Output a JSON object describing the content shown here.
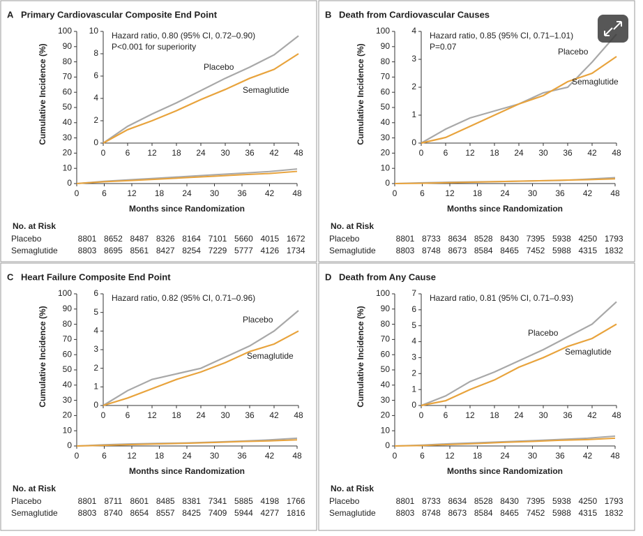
{
  "chart_data": [
    {
      "type": "line",
      "label": "A",
      "title": "Primary Cardiovascular Composite End Point",
      "x_label": "Months since Randomization",
      "y_label": "Cumulative Incidence (%)",
      "x": [
        0,
        6,
        12,
        18,
        24,
        30,
        36,
        42,
        48
      ],
      "xlim": [
        0,
        48
      ],
      "xticks": [
        0,
        6,
        12,
        18,
        24,
        30,
        36,
        42,
        48
      ],
      "ylim": [
        0,
        100
      ],
      "yticks": [
        0,
        10,
        20,
        30,
        40,
        50,
        60,
        70,
        80,
        90,
        100
      ],
      "inset": {
        "ylim": [
          0,
          10
        ],
        "yticks": [
          0,
          2,
          4,
          6,
          8,
          10
        ]
      },
      "series": [
        {
          "name": "Placebo",
          "color": "#a8a8a8",
          "values": [
            0,
            1.5,
            2.6,
            3.6,
            4.7,
            5.8,
            6.8,
            7.9,
            9.6
          ]
        },
        {
          "name": "Semaglutide",
          "color": "#e8a33c",
          "values": [
            0,
            1.2,
            2.0,
            2.9,
            3.9,
            4.8,
            5.8,
            6.6,
            8.0
          ]
        }
      ],
      "annotations": [
        "Hazard ratio, 0.80 (95% CI, 0.72–0.90)",
        "P<0.001 for superiority"
      ],
      "risk_table": {
        "title": "No. at Risk",
        "rows": [
          {
            "name": "Placebo",
            "values": [
              "8801",
              "8652",
              "8487",
              "8326",
              "8164",
              "7101",
              "5660",
              "4015",
              "1672"
            ]
          },
          {
            "name": "Semaglutide",
            "values": [
              "8803",
              "8695",
              "8561",
              "8427",
              "8254",
              "7229",
              "5777",
              "4126",
              "1734"
            ]
          }
        ]
      }
    },
    {
      "type": "line",
      "label": "B",
      "title": "Death from Cardiovascular Causes",
      "x_label": "Months since Randomization",
      "y_label": "Cumulative Incidence (%)",
      "x": [
        0,
        6,
        12,
        18,
        24,
        30,
        36,
        42,
        48
      ],
      "xlim": [
        0,
        48
      ],
      "xticks": [
        0,
        6,
        12,
        18,
        24,
        30,
        36,
        42,
        48
      ],
      "ylim": [
        0,
        100
      ],
      "yticks": [
        0,
        10,
        20,
        30,
        40,
        50,
        60,
        70,
        80,
        90,
        100
      ],
      "inset": {
        "ylim": [
          0,
          4
        ],
        "yticks": [
          0,
          1,
          2,
          3,
          4
        ]
      },
      "series": [
        {
          "name": "Placebo",
          "color": "#a8a8a8",
          "values": [
            0,
            0.5,
            0.9,
            1.15,
            1.4,
            1.8,
            2.0,
            2.9,
            3.9
          ]
        },
        {
          "name": "Semaglutide",
          "color": "#e8a33c",
          "values": [
            0,
            0.2,
            0.6,
            1.0,
            1.4,
            1.7,
            2.2,
            2.5,
            3.1
          ]
        }
      ],
      "annotations": [
        "Hazard ratio, 0.85 (95% CI, 0.71–1.01)",
        "P=0.07"
      ],
      "risk_table": {
        "title": "No. at Risk",
        "rows": [
          {
            "name": "Placebo",
            "values": [
              "8801",
              "8733",
              "8634",
              "8528",
              "8430",
              "7395",
              "5938",
              "4250",
              "1793"
            ]
          },
          {
            "name": "Semaglutide",
            "values": [
              "8803",
              "8748",
              "8673",
              "8584",
              "8465",
              "7452",
              "5988",
              "4315",
              "1832"
            ]
          }
        ]
      }
    },
    {
      "type": "line",
      "label": "C",
      "title": "Heart Failure Composite End Point",
      "x_label": "Months since Randomization",
      "y_label": "Cumulative Incidence (%)",
      "x": [
        0,
        6,
        12,
        18,
        24,
        30,
        36,
        42,
        48
      ],
      "xlim": [
        0,
        48
      ],
      "xticks": [
        0,
        6,
        12,
        18,
        24,
        30,
        36,
        42,
        48
      ],
      "ylim": [
        0,
        100
      ],
      "yticks": [
        0,
        10,
        20,
        30,
        40,
        50,
        60,
        70,
        80,
        90,
        100
      ],
      "inset": {
        "ylim": [
          0,
          6
        ],
        "yticks": [
          0,
          1,
          2,
          3,
          4,
          5,
          6
        ]
      },
      "series": [
        {
          "name": "Placebo",
          "color": "#a8a8a8",
          "values": [
            0,
            0.8,
            1.4,
            1.7,
            2.0,
            2.6,
            3.2,
            4.0,
            5.1
          ]
        },
        {
          "name": "Semaglutide",
          "color": "#e8a33c",
          "values": [
            0,
            0.4,
            0.9,
            1.4,
            1.8,
            2.3,
            2.9,
            3.3,
            4.0
          ]
        }
      ],
      "annotations": [
        "Hazard ratio, 0.82 (95% CI, 0.71–0.96)"
      ],
      "risk_table": {
        "title": "No. at Risk",
        "rows": [
          {
            "name": "Placebo",
            "values": [
              "8801",
              "8711",
              "8601",
              "8485",
              "8381",
              "7341",
              "5885",
              "4198",
              "1766"
            ]
          },
          {
            "name": "Semaglutide",
            "values": [
              "8803",
              "8740",
              "8654",
              "8557",
              "8425",
              "7409",
              "5944",
              "4277",
              "1816"
            ]
          }
        ]
      }
    },
    {
      "type": "line",
      "label": "D",
      "title": "Death from Any Cause",
      "x_label": "Months since Randomization",
      "y_label": "Cumulative Incidence (%)",
      "x": [
        0,
        6,
        12,
        18,
        24,
        30,
        36,
        42,
        48
      ],
      "xlim": [
        0,
        48
      ],
      "xticks": [
        0,
        6,
        12,
        18,
        24,
        30,
        36,
        42,
        48
      ],
      "ylim": [
        0,
        100
      ],
      "yticks": [
        0,
        10,
        20,
        30,
        40,
        50,
        60,
        70,
        80,
        90,
        100
      ],
      "inset": {
        "ylim": [
          0,
          7
        ],
        "yticks": [
          0,
          1,
          2,
          3,
          4,
          5,
          6,
          7
        ]
      },
      "series": [
        {
          "name": "Placebo",
          "color": "#a8a8a8",
          "values": [
            0,
            0.6,
            1.5,
            2.1,
            2.8,
            3.5,
            4.3,
            5.1,
            6.5
          ]
        },
        {
          "name": "Semaglutide",
          "color": "#e8a33c",
          "values": [
            0,
            0.3,
            1.0,
            1.6,
            2.4,
            3.0,
            3.7,
            4.2,
            5.1
          ]
        }
      ],
      "annotations": [
        "Hazard ratio, 0.81 (95% CI, 0.71–0.93)"
      ],
      "risk_table": {
        "title": "No. at Risk",
        "rows": [
          {
            "name": "Placebo",
            "values": [
              "8801",
              "8733",
              "8634",
              "8528",
              "8430",
              "7395",
              "5938",
              "4250",
              "1793"
            ]
          },
          {
            "name": "Semaglutide",
            "values": [
              "8803",
              "8748",
              "8673",
              "8584",
              "8465",
              "7452",
              "5988",
              "4315",
              "1832"
            ]
          }
        ]
      }
    }
  ]
}
